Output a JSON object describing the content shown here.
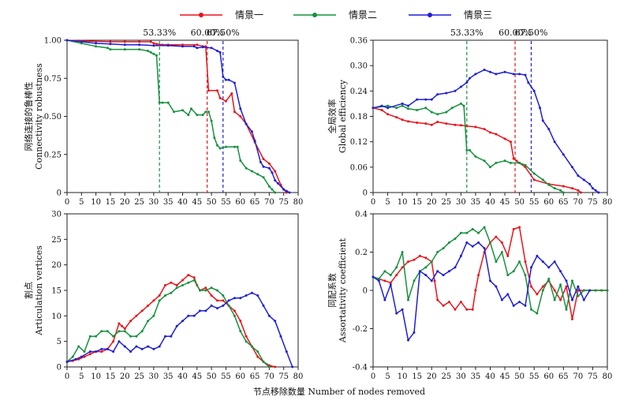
{
  "legend": {
    "position": "top-center",
    "items": [
      {
        "label": "情景一",
        "color": "#e8141b"
      },
      {
        "label": "情景二",
        "color": "#17913f"
      },
      {
        "label": "情景三",
        "color": "#1f1fd6"
      }
    ]
  },
  "xlabel": "节点移除数量 Number of nodes removed",
  "chart_data": [
    {
      "type": "line",
      "ylabel": [
        "网络连接的鲁棒性",
        "Connectivity robustness"
      ],
      "xlim": [
        0,
        80
      ],
      "ylim": [
        0,
        1
      ],
      "xticks": [
        0,
        5,
        10,
        15,
        20,
        25,
        30,
        35,
        40,
        45,
        50,
        55,
        60,
        65,
        70,
        75,
        80
      ],
      "yticks": [
        0,
        0.25,
        0.5,
        0.75,
        1
      ],
      "ytick_labels": [
        "0",
        "0.25",
        "0.50",
        "0.75",
        "1.00"
      ],
      "vlines": [
        {
          "x": 32,
          "label": "53.33%",
          "color": "#17913f"
        },
        {
          "x": 48.5,
          "label": "60.00%",
          "color": "#e8141b"
        },
        {
          "x": 54,
          "label": "67.50%",
          "color": "#1f1fd6"
        }
      ],
      "series": [
        {
          "color": "#e8141b",
          "x": [
            0,
            5,
            10,
            15,
            20,
            25,
            29,
            30,
            31,
            33,
            35,
            40,
            45,
            47,
            48,
            49,
            52,
            53,
            55,
            57,
            58,
            60,
            62,
            65,
            68,
            70,
            72,
            74,
            75,
            76
          ],
          "y": [
            1,
            0.995,
            0.993,
            0.99,
            0.99,
            0.99,
            0.99,
            0.98,
            0.975,
            0.97,
            0.97,
            0.97,
            0.97,
            0.96,
            0.96,
            0.67,
            0.67,
            0.62,
            0.6,
            0.65,
            0.53,
            0.5,
            0.45,
            0.33,
            0.22,
            0.19,
            0.14,
            0.05,
            0.02,
            0
          ]
        },
        {
          "color": "#17913f",
          "x": [
            0,
            5,
            10,
            14,
            15,
            20,
            25,
            28,
            29,
            30,
            31,
            32,
            33,
            35,
            37,
            40,
            42,
            43,
            45,
            47,
            48,
            49,
            50,
            51,
            52,
            53,
            55,
            58,
            59,
            60,
            62,
            64,
            66,
            68,
            70,
            71,
            72
          ],
          "y": [
            1,
            0.98,
            0.96,
            0.95,
            0.94,
            0.94,
            0.94,
            0.93,
            0.92,
            0.91,
            0.9,
            0.59,
            0.59,
            0.59,
            0.53,
            0.54,
            0.51,
            0.55,
            0.51,
            0.51,
            0.53,
            0.53,
            0.47,
            0.36,
            0.31,
            0.29,
            0.3,
            0.3,
            0.3,
            0.21,
            0.16,
            0.14,
            0.12,
            0.1,
            0.04,
            0.02,
            0
          ]
        },
        {
          "color": "#1f1fd6",
          "x": [
            0,
            5,
            10,
            15,
            20,
            25,
            30,
            35,
            40,
            44,
            45,
            47,
            50,
            52,
            53,
            54,
            55,
            56,
            58,
            60,
            62,
            64,
            65,
            67,
            68,
            70,
            71,
            72,
            73,
            75,
            76,
            77
          ],
          "y": [
            1,
            0.99,
            0.98,
            0.975,
            0.97,
            0.97,
            0.965,
            0.965,
            0.96,
            0.96,
            0.95,
            0.955,
            0.95,
            0.93,
            0.92,
            0.76,
            0.74,
            0.74,
            0.72,
            0.55,
            0.45,
            0.4,
            0.34,
            0.2,
            0.17,
            0.16,
            0.13,
            0.08,
            0.06,
            0.02,
            0.01,
            0
          ]
        }
      ]
    },
    {
      "type": "line",
      "ylabel": [
        "全局效率",
        "Global efficiency"
      ],
      "xlim": [
        0,
        80
      ],
      "ylim": [
        0,
        0.36
      ],
      "xticks": [
        0,
        5,
        10,
        15,
        20,
        25,
        30,
        35,
        40,
        45,
        50,
        55,
        60,
        65,
        70,
        75,
        80
      ],
      "yticks": [
        0,
        0.06,
        0.12,
        0.18,
        0.24,
        0.3,
        0.36
      ],
      "ytick_labels": [
        "0",
        "0.06",
        "0.12",
        "0.18",
        "0.24",
        "0.30",
        "0.36"
      ],
      "vlines": [
        {
          "x": 32,
          "label": "53.33%",
          "color": "#17913f"
        },
        {
          "x": 48.5,
          "label": "60.00%",
          "color": "#e8141b"
        },
        {
          "x": 54,
          "label": "67.50%",
          "color": "#1f1fd6"
        }
      ],
      "series": [
        {
          "color": "#e8141b",
          "x": [
            0,
            3,
            5,
            8,
            10,
            12,
            15,
            18,
            20,
            22,
            25,
            28,
            30,
            32,
            35,
            38,
            40,
            42,
            45,
            47,
            48,
            49,
            50,
            52,
            55,
            60,
            65,
            68,
            70,
            71
          ],
          "y": [
            0.2,
            0.195,
            0.185,
            0.178,
            0.172,
            0.168,
            0.165,
            0.163,
            0.16,
            0.167,
            0.163,
            0.16,
            0.159,
            0.157,
            0.155,
            0.15,
            0.142,
            0.138,
            0.127,
            0.12,
            0.08,
            0.075,
            0.07,
            0.06,
            0.03,
            0.02,
            0.015,
            0.01,
            0.005,
            0
          ]
        },
        {
          "color": "#17913f",
          "x": [
            0,
            5,
            8,
            10,
            12,
            15,
            18,
            20,
            22,
            25,
            27,
            30,
            31,
            32,
            33,
            35,
            38,
            40,
            42,
            45,
            47,
            50,
            52,
            55,
            58,
            60,
            62,
            64,
            65
          ],
          "y": [
            0.2,
            0.205,
            0.2,
            0.205,
            0.198,
            0.195,
            0.2,
            0.19,
            0.185,
            0.19,
            0.2,
            0.21,
            0.205,
            0.1,
            0.1,
            0.085,
            0.075,
            0.06,
            0.07,
            0.075,
            0.07,
            0.07,
            0.065,
            0.045,
            0.03,
            0.018,
            0.01,
            0.005,
            0
          ]
        },
        {
          "color": "#1f1fd6",
          "x": [
            0,
            3,
            5,
            10,
            12,
            15,
            18,
            20,
            22,
            25,
            28,
            30,
            32,
            33,
            35,
            38,
            40,
            42,
            45,
            48,
            50,
            52,
            53,
            55,
            57,
            58,
            60,
            62,
            65,
            68,
            70,
            72,
            74,
            75,
            76,
            77
          ],
          "y": [
            0.2,
            0.205,
            0.2,
            0.21,
            0.205,
            0.22,
            0.22,
            0.22,
            0.232,
            0.235,
            0.24,
            0.25,
            0.26,
            0.27,
            0.28,
            0.29,
            0.285,
            0.28,
            0.285,
            0.28,
            0.28,
            0.278,
            0.26,
            0.24,
            0.2,
            0.17,
            0.15,
            0.12,
            0.09,
            0.06,
            0.04,
            0.03,
            0.02,
            0.01,
            0.005,
            0
          ]
        }
      ]
    },
    {
      "type": "line",
      "ylabel": [
        "割点",
        "Articulation vertices"
      ],
      "xlim": [
        0,
        80
      ],
      "ylim": [
        0,
        30
      ],
      "xticks": [
        0,
        5,
        10,
        15,
        20,
        25,
        30,
        35,
        40,
        45,
        50,
        55,
        60,
        65,
        70,
        75,
        80
      ],
      "yticks": [
        0,
        5,
        10,
        15,
        20,
        25,
        30
      ],
      "ytick_labels": [
        "0",
        "5",
        "10",
        "15",
        "20",
        "25",
        "30"
      ],
      "vlines": [],
      "series": [
        {
          "color": "#e8141b",
          "x": [
            0,
            2,
            4,
            6,
            8,
            10,
            12,
            14,
            16,
            18,
            19,
            20,
            22,
            24,
            26,
            28,
            30,
            32,
            34,
            36,
            38,
            40,
            42,
            44,
            45,
            46,
            48,
            50,
            52,
            54,
            56,
            58,
            60,
            62,
            64,
            66,
            68,
            70,
            72
          ],
          "y": [
            1,
            1.2,
            1.5,
            2,
            2.5,
            3,
            3,
            3.5,
            5,
            8.5,
            8,
            7.5,
            9,
            10,
            11,
            12,
            13,
            14,
            16,
            16.5,
            16,
            17,
            18,
            17.5,
            16,
            15,
            15.5,
            14,
            13,
            13,
            12,
            11,
            9,
            6,
            4,
            2,
            1,
            0.3,
            0
          ]
        },
        {
          "color": "#17913f",
          "x": [
            0,
            2,
            4,
            6,
            8,
            10,
            12,
            14,
            16,
            18,
            20,
            22,
            24,
            26,
            28,
            30,
            32,
            34,
            36,
            38,
            40,
            42,
            44,
            46,
            48,
            50,
            52,
            54,
            56,
            58,
            60,
            62,
            64,
            66,
            68,
            70
          ],
          "y": [
            1,
            2,
            4,
            3,
            6,
            6,
            7,
            7,
            6,
            7,
            7,
            6,
            6,
            7,
            9,
            10,
            13,
            14,
            14.5,
            15.5,
            16,
            16.5,
            17,
            15,
            15,
            15.5,
            15,
            14,
            12,
            10,
            7,
            5,
            4,
            3,
            1,
            0
          ]
        },
        {
          "color": "#1f1fd6",
          "x": [
            0,
            3,
            5,
            8,
            10,
            12,
            14,
            16,
            18,
            20,
            22,
            24,
            26,
            28,
            30,
            32,
            34,
            36,
            38,
            40,
            42,
            44,
            46,
            48,
            50,
            52,
            54,
            56,
            58,
            60,
            62,
            64,
            66,
            68,
            70,
            72,
            74,
            76,
            78
          ],
          "y": [
            1,
            1.5,
            2,
            3,
            3,
            3.5,
            3.5,
            3,
            5,
            4,
            3,
            4,
            3.5,
            4,
            3.5,
            4,
            6,
            6,
            8,
            9,
            10,
            10,
            11,
            11,
            12,
            11.5,
            12,
            13,
            13.5,
            13.5,
            14,
            14.5,
            14,
            12,
            10,
            9,
            6,
            3,
            0
          ]
        }
      ]
    },
    {
      "type": "line",
      "ylabel": [
        "同配系数",
        "Assortativity coefficient"
      ],
      "xlim": [
        0,
        80
      ],
      "ylim": [
        -0.4,
        0.4
      ],
      "xticks": [
        0,
        5,
        10,
        15,
        20,
        25,
        30,
        35,
        40,
        45,
        50,
        55,
        60,
        65,
        70,
        75,
        80
      ],
      "yticks": [
        -0.4,
        -0.2,
        0,
        0.2,
        0.4
      ],
      "ytick_labels": [
        "-0.4",
        "-0.2",
        "0",
        "0.2",
        "0.4"
      ],
      "vlines": [],
      "series": [
        {
          "color": "#e8141b",
          "x": [
            0,
            2,
            4,
            6,
            8,
            10,
            12,
            14,
            16,
            18,
            20,
            21,
            22,
            24,
            26,
            28,
            30,
            32,
            34,
            35,
            36,
            38,
            40,
            42,
            44,
            46,
            48,
            50,
            52,
            54,
            56,
            58,
            60,
            62,
            64,
            66,
            68,
            70,
            72,
            74,
            76,
            78,
            80
          ],
          "y": [
            0.07,
            0.06,
            0.05,
            0.04,
            0.08,
            0.12,
            0.15,
            0.16,
            0.18,
            0.17,
            0.15,
            0.05,
            -0.05,
            -0.08,
            -0.06,
            -0.1,
            -0.06,
            -0.1,
            -0.1,
            0.0,
            0.08,
            0.2,
            0.25,
            0.28,
            0.25,
            0.18,
            0.32,
            0.33,
            0.15,
            0.02,
            -0.02,
            0.02,
            0.05,
            0.0,
            -0.05,
            0.02,
            -0.15,
            0.0,
            0,
            0,
            0,
            0,
            0
          ]
        },
        {
          "color": "#17913f",
          "x": [
            0,
            2,
            4,
            6,
            8,
            10,
            12,
            14,
            16,
            18,
            20,
            22,
            24,
            26,
            28,
            30,
            32,
            34,
            36,
            38,
            40,
            42,
            44,
            46,
            48,
            50,
            52,
            54,
            56,
            58,
            60,
            62,
            64,
            66,
            68,
            70,
            72,
            74,
            76,
            78,
            80
          ],
          "y": [
            0.07,
            0.06,
            0.1,
            0.08,
            0.12,
            0.2,
            -0.05,
            0.05,
            0.1,
            0.12,
            0.15,
            0.2,
            0.22,
            0.25,
            0.27,
            0.3,
            0.3,
            0.32,
            0.3,
            0.33,
            0.25,
            0.15,
            0.2,
            0.08,
            0.1,
            0.15,
            0.08,
            -0.1,
            -0.12,
            0.0,
            0.06,
            -0.05,
            0.03,
            -0.1,
            0.05,
            -0.03,
            0,
            0,
            0,
            0,
            0
          ]
        },
        {
          "color": "#1f1fd6",
          "x": [
            0,
            2,
            4,
            6,
            8,
            10,
            12,
            14,
            16,
            18,
            20,
            22,
            24,
            26,
            28,
            30,
            32,
            34,
            36,
            38,
            40,
            42,
            44,
            46,
            48,
            50,
            52,
            54,
            56,
            58,
            60,
            62,
            64,
            66,
            68,
            70,
            72,
            74
          ],
          "y": [
            0.07,
            0.05,
            -0.05,
            0.03,
            -0.12,
            -0.1,
            -0.26,
            -0.22,
            0.1,
            0.08,
            0.05,
            0.1,
            0.08,
            0.1,
            0.12,
            0.18,
            0.25,
            0.23,
            0.25,
            0.22,
            0.05,
            0.02,
            -0.05,
            -0.02,
            -0.08,
            -0.06,
            -0.08,
            0.12,
            0.18,
            0.15,
            0.12,
            0.15,
            0.1,
            0.05,
            -0.05,
            0.02,
            -0.05,
            0
          ]
        }
      ]
    }
  ]
}
